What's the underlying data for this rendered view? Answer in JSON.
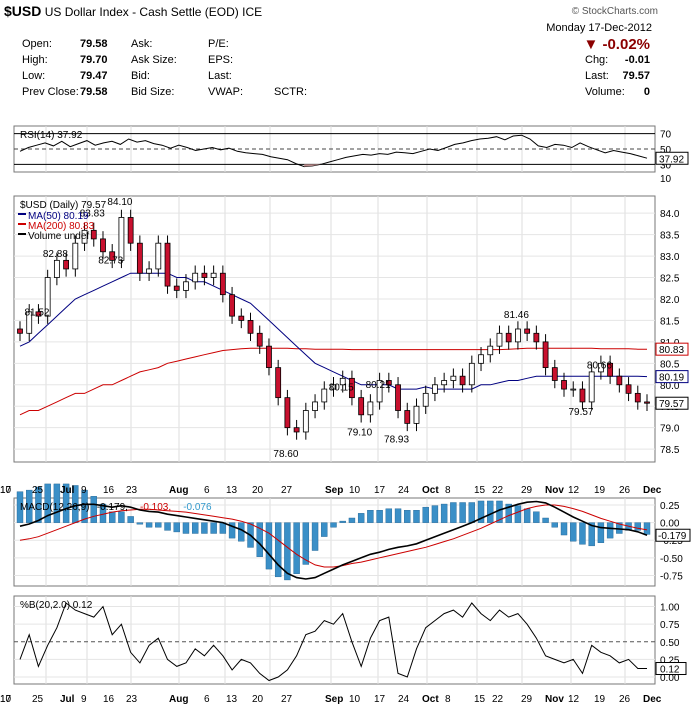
{
  "header": {
    "symbol": "$USD",
    "name": "US Dollar Index - Cash Settle (EOD)",
    "exchange": "ICE",
    "watermark": "© StockCharts.com",
    "date": "Monday   17-Dec-2012",
    "change_pct": "-0.02%",
    "quote": [
      {
        "label": "Open:",
        "value": "79.58"
      },
      {
        "label": "High:",
        "value": "79.70"
      },
      {
        "label": "Low:",
        "value": "79.47"
      },
      {
        "label": "Prev Close:",
        "value": "79.58"
      }
    ],
    "quote2": [
      "Ask:",
      "Ask Size:",
      "Bid:",
      "Bid Size:"
    ],
    "quote3": [
      "P/E:",
      "EPS:",
      "Last:",
      "VWAP:"
    ],
    "sctr": "SCTR:",
    "right": [
      {
        "label": "Chg:",
        "value": "-0.01"
      },
      {
        "label": "Last:",
        "value": "79.57"
      },
      {
        "label": "Volume:",
        "value": "0"
      }
    ],
    "colors": {
      "down": "#8b0000",
      "up": "#000000"
    }
  },
  "chart_data": [
    {
      "type": "line",
      "title": "RSI(14) 37.92",
      "levels": [
        70,
        50,
        30
      ],
      "ylim": [
        20,
        80
      ],
      "yticks": [
        "70",
        "50",
        "30",
        "10"
      ],
      "last_label": "37.92",
      "values": [
        47,
        52,
        55,
        58,
        54,
        60,
        53,
        57,
        61,
        55,
        58,
        60,
        56,
        63,
        59,
        61,
        57,
        55,
        51,
        55,
        52,
        48,
        50,
        52,
        49,
        51,
        47,
        45,
        44,
        43,
        40,
        38,
        36,
        31,
        27,
        28,
        30,
        33,
        36,
        39,
        41,
        43,
        42,
        44,
        43,
        46,
        45,
        44,
        47,
        50,
        48,
        52,
        56,
        58,
        61,
        63,
        64,
        66,
        62,
        67,
        68,
        63,
        54,
        52,
        56,
        55,
        52,
        58,
        53,
        49,
        45,
        48,
        46,
        44,
        41,
        38
      ]
    },
    {
      "type": "candlestick",
      "title": "$USD (Daily) 79.57",
      "legend": [
        {
          "name": "MA(50) 80.19",
          "color": "#000080"
        },
        {
          "name": "MA(200) 80.83",
          "color": "#cc0000"
        },
        {
          "name": "Volume undef",
          "color": "#000"
        }
      ],
      "ylim": [
        78.2,
        84.4
      ],
      "yticks": [
        "84.0",
        "83.5",
        "83.0",
        "82.5",
        "82.0",
        "81.5",
        "81.0",
        "80.5",
        "80.0",
        "79.5",
        "79.0",
        "78.5"
      ],
      "annotations": [
        {
          "text": "84.10",
          "index": 11,
          "value": 84.1
        },
        {
          "text": "83.83",
          "index": 8,
          "value": 83.83
        },
        {
          "text": "82.88",
          "index": 4,
          "value": 82.88
        },
        {
          "text": "82.73",
          "index": 10,
          "value": 82.73
        },
        {
          "text": "81.52",
          "index": 2,
          "value": 81.52
        },
        {
          "text": "78.60",
          "index": 29,
          "value": 78.6
        },
        {
          "text": "80.15",
          "index": 35,
          "value": 80.15
        },
        {
          "text": "79.10",
          "index": 37,
          "value": 79.1
        },
        {
          "text": "80.21",
          "index": 39,
          "value": 80.21
        },
        {
          "text": "78.93",
          "index": 41,
          "value": 78.93
        },
        {
          "text": "81.46",
          "index": 54,
          "value": 81.46
        },
        {
          "text": "80.66",
          "index": 63,
          "value": 80.66
        },
        {
          "text": "79.57",
          "index": 61,
          "value": 79.57
        }
      ],
      "right_labels": [
        {
          "text": "80.83",
          "value": 80.83,
          "color": "#cc0000"
        },
        {
          "text": "80.19",
          "value": 80.19,
          "color": "#000080"
        },
        {
          "text": "79.57",
          "value": 79.57,
          "color": "#000000"
        }
      ],
      "close": [
        81.2,
        81.7,
        81.6,
        82.5,
        82.9,
        82.7,
        83.3,
        83.6,
        83.4,
        83.1,
        82.9,
        83.9,
        83.3,
        82.6,
        82.7,
        83.3,
        82.3,
        82.2,
        82.4,
        82.6,
        82.5,
        82.6,
        82.1,
        81.6,
        81.5,
        81.2,
        80.9,
        80.4,
        79.7,
        79.0,
        78.9,
        79.4,
        79.6,
        79.9,
        80.0,
        80.15,
        79.7,
        79.3,
        79.6,
        80.1,
        80.0,
        79.4,
        79.1,
        79.5,
        79.8,
        80.0,
        80.1,
        80.2,
        80.0,
        80.5,
        80.7,
        80.9,
        81.2,
        81.0,
        81.3,
        81.2,
        81.0,
        80.4,
        80.1,
        79.9,
        79.9,
        79.6,
        80.3,
        80.5,
        80.2,
        80.0,
        79.8,
        79.6,
        79.57
      ],
      "ma50": [
        80.9,
        81.0,
        81.2,
        81.4,
        81.6,
        81.8,
        82.0,
        82.1,
        82.2,
        82.3,
        82.4,
        82.5,
        82.6,
        82.6,
        82.6,
        82.6,
        82.6,
        82.5,
        82.5,
        82.4,
        82.4,
        82.3,
        82.2,
        82.1,
        82.0,
        81.9,
        81.7,
        81.5,
        81.3,
        81.1,
        80.9,
        80.7,
        80.5,
        80.4,
        80.3,
        80.2,
        80.1,
        80.0,
        80.0,
        80.0,
        80.0,
        79.9,
        79.9,
        79.9,
        79.95,
        79.9,
        79.9,
        79.9,
        79.9,
        79.9,
        80.0,
        80.0,
        80.05,
        80.1,
        80.1,
        80.15,
        80.2,
        80.2,
        80.2,
        80.2,
        80.2,
        80.2,
        80.2,
        80.2,
        80.2,
        80.2,
        80.2,
        80.2,
        80.19
      ],
      "ma200": [
        79.3,
        79.4,
        79.4,
        79.5,
        79.6,
        79.7,
        79.8,
        79.8,
        79.9,
        80.0,
        80.0,
        80.1,
        80.2,
        80.3,
        80.35,
        80.4,
        80.5,
        80.55,
        80.6,
        80.65,
        80.7,
        80.75,
        80.8,
        80.82,
        80.84,
        80.85,
        80.85,
        80.85,
        80.85,
        80.85,
        80.84,
        80.84,
        80.83,
        80.83,
        80.83,
        80.83,
        80.82,
        80.82,
        80.82,
        80.82,
        80.82,
        80.82,
        80.82,
        80.82,
        80.82,
        80.82,
        80.82,
        80.82,
        80.82,
        80.82,
        80.82,
        80.82,
        80.82,
        80.83,
        80.84,
        80.85,
        80.85,
        80.85,
        80.85,
        80.85,
        80.85,
        80.85,
        80.85,
        80.84,
        80.84,
        80.84,
        80.84,
        80.83,
        80.83
      ]
    },
    {
      "type": "histogram",
      "title": "MACD(12,26,9) -0.179, -0.103, -0.076",
      "title_parts": [
        "MACD(12,26,9)",
        "-0.179,",
        "-0.103,",
        "-0.076"
      ],
      "title_colors": [
        "#000000",
        "#000000",
        "#cc0000",
        "#3399cc"
      ],
      "ylim": [
        -0.9,
        0.35
      ],
      "yticks": [
        "0.25",
        "0.00",
        "-0.25",
        "-0.50",
        "-0.75"
      ],
      "last_label": "-0.179",
      "macd": [
        -0.05,
        -0.02,
        0.03,
        0.1,
        0.15,
        0.2,
        0.24,
        0.26,
        0.26,
        0.24,
        0.22,
        0.24,
        0.22,
        0.18,
        0.16,
        0.15,
        0.12,
        0.1,
        0.08,
        0.06,
        0.04,
        0.02,
        0.0,
        -0.05,
        -0.1,
        -0.18,
        -0.3,
        -0.45,
        -0.6,
        -0.72,
        -0.78,
        -0.8,
        -0.78,
        -0.72,
        -0.66,
        -0.6,
        -0.55,
        -0.5,
        -0.45,
        -0.42,
        -0.38,
        -0.35,
        -0.33,
        -0.3,
        -0.25,
        -0.2,
        -0.15,
        -0.1,
        -0.05,
        0.0,
        0.06,
        0.12,
        0.18,
        0.22,
        0.26,
        0.29,
        0.3,
        0.28,
        0.22,
        0.15,
        0.08,
        0.02,
        -0.04,
        -0.07,
        -0.08,
        -0.09,
        -0.1,
        -0.13,
        -0.179
      ],
      "signal": [
        -0.25,
        -0.23,
        -0.2,
        -0.15,
        -0.1,
        -0.05,
        0.0,
        0.05,
        0.09,
        0.12,
        0.15,
        0.17,
        0.18,
        0.19,
        0.19,
        0.18,
        0.17,
        0.16,
        0.15,
        0.13,
        0.11,
        0.09,
        0.07,
        0.05,
        0.02,
        -0.02,
        -0.08,
        -0.15,
        -0.25,
        -0.35,
        -0.45,
        -0.53,
        -0.6,
        -0.63,
        -0.63,
        -0.61,
        -0.58,
        -0.56,
        -0.53,
        -0.5,
        -0.47,
        -0.44,
        -0.41,
        -0.38,
        -0.35,
        -0.31,
        -0.27,
        -0.23,
        -0.18,
        -0.13,
        -0.08,
        -0.02,
        0.04,
        0.1,
        0.15,
        0.2,
        0.23,
        0.25,
        0.25,
        0.23,
        0.2,
        0.16,
        0.11,
        0.06,
        0.02,
        -0.02,
        -0.05,
        -0.08,
        -0.103
      ]
    },
    {
      "type": "line",
      "title": "%B(20,2.0) 0.12",
      "ylim": [
        -0.1,
        1.15
      ],
      "yticks": [
        "1.00",
        "0.75",
        "0.50",
        "0.25",
        "0.00"
      ],
      "last_label": "0.12",
      "levels": [
        1.0,
        0.5,
        0.0
      ],
      "values": [
        0.25,
        0.6,
        0.15,
        0.45,
        0.7,
        1.05,
        0.95,
        0.9,
        0.85,
        1.0,
        0.6,
        0.75,
        0.35,
        0.2,
        0.45,
        0.55,
        0.25,
        0.15,
        0.2,
        0.4,
        0.3,
        0.45,
        0.3,
        0.1,
        0.25,
        0.2,
        0.05,
        -0.05,
        0.0,
        0.1,
        0.3,
        0.6,
        0.65,
        0.8,
        0.75,
        0.9,
        0.5,
        0.15,
        0.55,
        0.8,
        0.85,
        0.05,
        0.0,
        0.4,
        0.7,
        0.8,
        0.9,
        0.95,
        0.85,
        1.05,
        0.9,
        0.8,
        0.95,
        0.85,
        0.9,
        0.75,
        0.55,
        0.3,
        0.25,
        0.2,
        0.25,
        0.05,
        0.45,
        0.35,
        0.3,
        0.2,
        0.25,
        0.12,
        0.12
      ]
    }
  ],
  "xaxis": {
    "labels": [
      "25",
      "Jul",
      "9",
      "16",
      "23",
      "Aug",
      "6",
      "13",
      "20",
      "27",
      "Sep",
      "10",
      "17",
      "24",
      "Oct",
      "8",
      "15",
      "22",
      "29",
      "Nov",
      "12",
      "19",
      "26",
      "Dec",
      "10",
      "17"
    ]
  }
}
